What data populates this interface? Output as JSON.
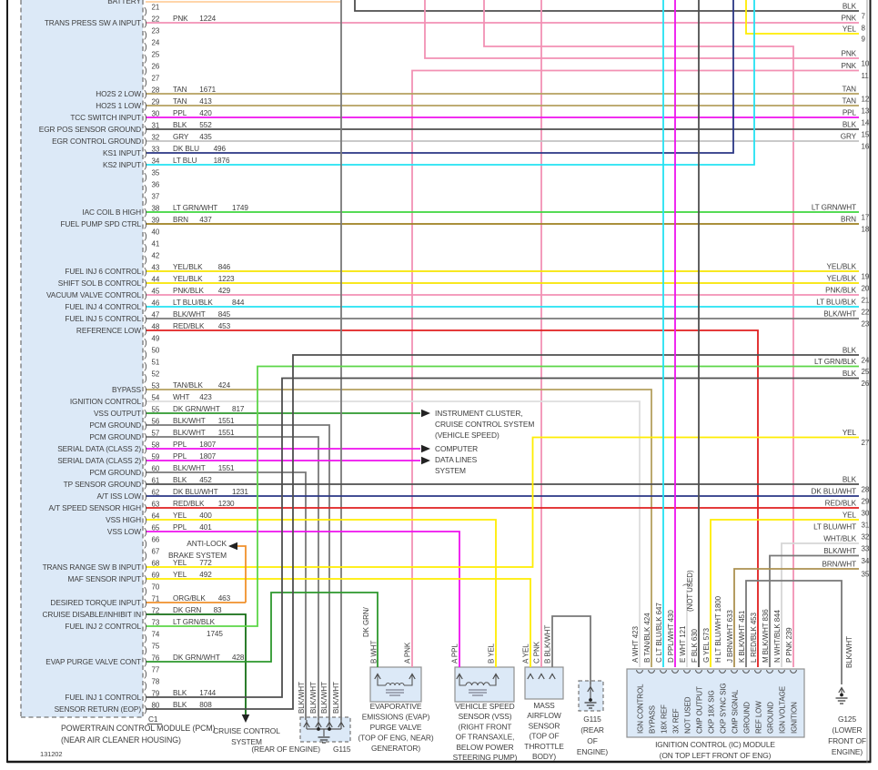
{
  "palette": {
    "PNK": "#F291B4",
    "TAN": "#B5A05F",
    "PPL": "#EE10EE",
    "BLK": "#4E4E4E",
    "GRY": "#C2C2C2",
    "DK BLU": "#2A3684",
    "LT BLU": "#23E2F2",
    "LT GRN/WHT": "#3ED63E",
    "BRN": "#9E8020",
    "YEL": "#FFED00",
    "YEL/BLK": "#F7E400",
    "PNK/BLK": "#F291B4",
    "LT BLU/BLK": "#23E2F2",
    "BLK/WHT": "#787878",
    "RED/BLK": "#E01F1F",
    "TAN/BLK": "#B5A05F",
    "WHT": "#DEDEDE",
    "DK GRN/WHT": "#2D982D",
    "DK BLU/WHT": "#2A3684",
    "ORG/BLK": "#F0912C",
    "DK GRN": "#156F15",
    "LT GRN/BLK": "#5CD648",
    "ORG": "#FFCF9E",
    "WHT/BLK": "#D6D6D6",
    "BRN/WHT": "#AC9150",
    "PPL/WHT": "#EE10EE"
  },
  "box_fill": "#DCE9F7",
  "pcm": {
    "caption": [
      "POWERTRAIN CONTROL MODULE (PCM)",
      "(NEAR AIR CLEANER HOUSING)"
    ],
    "connector": "C1",
    "pins": [
      {
        "n": 20,
        "label": "BATTERY",
        "color": "ORG",
        "num": ""
      },
      {
        "n": 21
      },
      {
        "n": 22,
        "label": "TRANS PRESS SW A INPUT",
        "color": "PNK",
        "num": "1224"
      },
      {
        "n": 23
      },
      {
        "n": 24
      },
      {
        "n": 25
      },
      {
        "n": 26
      },
      {
        "n": 27
      },
      {
        "n": 28,
        "label": "HO2S 2 LOW",
        "color": "TAN",
        "num": "1671"
      },
      {
        "n": 29,
        "label": "HO2S 1 LOW",
        "color": "TAN",
        "num": "413"
      },
      {
        "n": 30,
        "label": "TCC SWITCH INPUT",
        "color": "PPL",
        "num": "420"
      },
      {
        "n": 31,
        "label": "EGR POS SENSOR GROUND",
        "color": "BLK",
        "num": "552"
      },
      {
        "n": 32,
        "label": "EGR CONTROL GROUND",
        "color": "GRY",
        "num": "435"
      },
      {
        "n": 33,
        "label": "KS1 INPUT",
        "color": "DK BLU",
        "num": "496"
      },
      {
        "n": 34,
        "label": "KS2 INPUT",
        "color": "LT BLU",
        "num": "1876"
      },
      {
        "n": 35
      },
      {
        "n": 36
      },
      {
        "n": 37
      },
      {
        "n": 38,
        "label": "IAC COIL B HIGH",
        "color": "LT GRN/WHT",
        "num": "1749"
      },
      {
        "n": 39,
        "label": "FUEL PUMP SPD CTRL",
        "color": "BRN",
        "num": "437"
      },
      {
        "n": 40
      },
      {
        "n": 41
      },
      {
        "n": 42
      },
      {
        "n": 43,
        "label": "FUEL INJ 6 CONTROL",
        "color": "YEL/BLK",
        "num": "846"
      },
      {
        "n": 44,
        "label": "SHIFT SOL B CONTROL",
        "color": "YEL/BLK",
        "num": "1223"
      },
      {
        "n": 45,
        "label": "VACUUM VALVE CONTROL",
        "color": "PNK/BLK",
        "num": "429"
      },
      {
        "n": 46,
        "label": "FUEL INJ 4 CONTROL",
        "color": "LT BLU/BLK",
        "num": "844"
      },
      {
        "n": 47,
        "label": "FUEL INJ 5 CONTROL",
        "color": "BLK/WHT",
        "num": "845"
      },
      {
        "n": 48,
        "label": "REFERENCE LOW",
        "color": "RED/BLK",
        "num": "453"
      },
      {
        "n": 49
      },
      {
        "n": 50
      },
      {
        "n": 51
      },
      {
        "n": 52
      },
      {
        "n": 53,
        "label": "BYPASS",
        "color": "TAN/BLK",
        "num": "424"
      },
      {
        "n": 54,
        "label": "IGNITION CONTROL",
        "color": "WHT",
        "num": "423"
      },
      {
        "n": 55,
        "label": "VSS OUTPUT",
        "color": "DK GRN/WHT",
        "num": "817"
      },
      {
        "n": 56,
        "label": "PCM GROUND",
        "color": "BLK/WHT",
        "num": "1551"
      },
      {
        "n": 57,
        "label": "PCM GROUND",
        "color": "BLK/WHT",
        "num": "1551"
      },
      {
        "n": 58,
        "label": "SERIAL DATA (CLASS 2)",
        "color": "PPL",
        "num": "1807"
      },
      {
        "n": 59,
        "label": "SERIAL DATA (CLASS 2)",
        "color": "PPL",
        "num": "1807"
      },
      {
        "n": 60,
        "label": "PCM GROUND",
        "color": "BLK/WHT",
        "num": "1551"
      },
      {
        "n": 61,
        "label": "TP SENSOR GROUND",
        "color": "BLK",
        "num": "452"
      },
      {
        "n": 62,
        "label": "A/T ISS LOW",
        "color": "DK BLU/WHT",
        "num": "1231"
      },
      {
        "n": 63,
        "label": "A/T SPEED SENSOR HIGH",
        "color": "RED/BLK",
        "num": "1230"
      },
      {
        "n": 64,
        "label": "VSS HIGH",
        "color": "YEL",
        "num": "400"
      },
      {
        "n": 65,
        "label": "VSS LOW",
        "color": "PPL",
        "num": "401"
      },
      {
        "n": 66
      },
      {
        "n": 67
      },
      {
        "n": 68,
        "label": "TRANS RANGE SW B INPUT",
        "color": "YEL",
        "num": "772"
      },
      {
        "n": 69,
        "label": "MAF SENSOR INPUT",
        "color": "YEL",
        "num": "492"
      },
      {
        "n": 70
      },
      {
        "n": 71,
        "label": "DESIRED TORQUE INPUT",
        "color": "ORG/BLK",
        "num": "463"
      },
      {
        "n": 72,
        "label": "CRUISE DISABLE/INHIBIT IN",
        "color": "DK GRN",
        "num": "83"
      },
      {
        "n": 73,
        "label": "FUEL INJ 2 CONTROL",
        "color": "LT GRN/BLK",
        "num": "1745",
        "wrap": true
      },
      {
        "n": 74
      },
      {
        "n": 75
      },
      {
        "n": 76,
        "label": "EVAP PURGE VALVE CONT",
        "color": "DK GRN/WHT",
        "num": "428"
      },
      {
        "n": 77
      },
      {
        "n": 78
      },
      {
        "n": 79,
        "label": "FUEL INJ 1 CONTROL",
        "color": "BLK",
        "num": "1744"
      },
      {
        "n": 80,
        "label": "SENSOR RETURN (EOP)",
        "color": "BLK",
        "num": "808"
      }
    ]
  },
  "right_edge": [
    {
      "n": "7",
      "c": "BLK"
    },
    {
      "n": "8",
      "c": "PNK"
    },
    {
      "n": "9",
      "c": "YEL"
    },
    {
      "n": "10",
      "c": "PNK"
    },
    {
      "n": "11",
      "c": "PNK"
    },
    {
      "n": "12",
      "c": "TAN"
    },
    {
      "n": "13",
      "c": "TAN"
    },
    {
      "n": "14",
      "c": "PPL"
    },
    {
      "n": "15",
      "c": "BLK"
    },
    {
      "n": "16",
      "c": "GRY"
    },
    {
      "n": "17",
      "c": "LT GRN/WHT"
    },
    {
      "n": "18",
      "c": "BRN"
    },
    {
      "n": "19",
      "c": "YEL/BLK"
    },
    {
      "n": "20",
      "c": "YEL/BLK"
    },
    {
      "n": "21",
      "c": "PNK/BLK"
    },
    {
      "n": "22",
      "c": "LT BLU/BLK"
    },
    {
      "n": "23",
      "c": "BLK/WHT"
    },
    {
      "n": "24",
      "c": "BLK"
    },
    {
      "n": "25",
      "c": "LT GRN/BLK"
    },
    {
      "n": "26",
      "c": "BLK"
    },
    {
      "n": "27",
      "c": "YEL"
    },
    {
      "n": "28",
      "c": "BLK"
    },
    {
      "n": "29",
      "c": "DK BLU/WHT"
    },
    {
      "n": "30",
      "c": "RED/BLK"
    },
    {
      "n": "31",
      "c": "YEL"
    },
    {
      "n": "32",
      "c": "LT BLU/WHT"
    },
    {
      "n": "33",
      "c": "WHT/BLK"
    },
    {
      "n": "34",
      "c": "BLK/WHT"
    },
    {
      "n": "35",
      "c": "BRN/WHT"
    }
  ],
  "annotations": {
    "instrument_cluster": [
      "INSTRUMENT CLUSTER,",
      "CRUISE CONTROL SYSTEM",
      "(VEHICLE SPEED)"
    ],
    "computer_data": [
      "COMPUTER",
      "DATA LINES",
      "SYSTEM"
    ],
    "abs": [
      "ANTI-LOCK",
      "BRAKE SYSTEM"
    ],
    "cruise": [
      "CRUISE CONTROL",
      "SYSTEM"
    ]
  },
  "components": {
    "evap": {
      "caption": [
        "EVAPORATIVE",
        "EMISSIONS (EVAP)",
        "PURGE VALVE",
        "(TOP OF ENG, NEAR)",
        "GENERATOR)"
      ],
      "pin_b_lines": [
        "DK GRN/",
        "B WHT"
      ],
      "pin_a": "A PNK"
    },
    "vss": {
      "caption": [
        "VEHICLE SPEED",
        "SENSOR (VSS)",
        "(RIGHT FRONT",
        "OF TRANSAXLE,",
        "BELOW POWER",
        "STEERING PUMP)"
      ],
      "pin_a": "A PPL",
      "pin_b": "B YEL"
    },
    "maf": {
      "caption": [
        "MASS",
        "AIRFLOW",
        "SENSOR",
        "(TOP OF",
        "THROTTLE",
        "BODY)"
      ],
      "pins": [
        "A YEL",
        "C PNK",
        "B BLK/WHT"
      ]
    },
    "ic": {
      "caption": [
        "IGNITION CONTROL (IC) MODULE",
        "(ON TOP LEFT FRONT OF ENG)"
      ],
      "not_used": "(NOT USED)",
      "pins": [
        {
          "l": "A",
          "c": "WHT",
          "n": "423",
          "f": "IGN CONTROL"
        },
        {
          "l": "B",
          "c": "TAN/BLK",
          "n": "424",
          "f": "BYPASS"
        },
        {
          "l": "C",
          "c": "LT BLU/BLK",
          "n": "647",
          "f": "18X REF"
        },
        {
          "l": "D",
          "c": "PPL/WHT",
          "n": "430",
          "f": "3X REF"
        },
        {
          "l": "E",
          "c": "WHT",
          "n": "121",
          "f": "NOT USED"
        },
        {
          "l": "F",
          "c": "BLK",
          "n": "630",
          "f": "CMP OUTPUT"
        },
        {
          "l": "G",
          "c": "YEL",
          "n": "573",
          "f": "CKP 18X SIG"
        },
        {
          "l": "H",
          "c": "LT BLU/WHT",
          "n": "1800",
          "f": "CKP SYNC SIG"
        },
        {
          "l": "J",
          "c": "BRN/WHT",
          "n": "633",
          "f": "CMP SIGNAL"
        },
        {
          "l": "K",
          "c": "BLK/WHT",
          "n": "451",
          "f": "GROUND"
        },
        {
          "l": "L",
          "c": "RED/BLK",
          "n": "453",
          "f": "REF LOW"
        },
        {
          "l": "M",
          "c": "BLK/WHT",
          "n": "836",
          "f": "GROUND"
        },
        {
          "l": "N",
          "c": "WHT/BLK",
          "n": "844",
          "f": "IGN VOLTAGE"
        },
        {
          "l": "P",
          "c": "PNK",
          "n": "239",
          "f": "IGNITION"
        }
      ]
    },
    "g115_pcm": {
      "label": "G115",
      "location": "(REAR OF ENGINE)",
      "wire_labels": [
        "BLK/WHT",
        "BLK/WHT",
        "BLK/WHT",
        "BLK/WHT"
      ]
    },
    "g115_maf": {
      "label": "G115",
      "location_lines": [
        "(REAR",
        "OF",
        "ENGINE)"
      ],
      "wire_label": "BLK/WHT"
    },
    "g125": {
      "label": "G125",
      "location_lines": [
        "(LOWER",
        "FRONT OF",
        "ENGINE)"
      ],
      "wire_label": "BLK/WHT"
    }
  },
  "footer_number": "131202"
}
